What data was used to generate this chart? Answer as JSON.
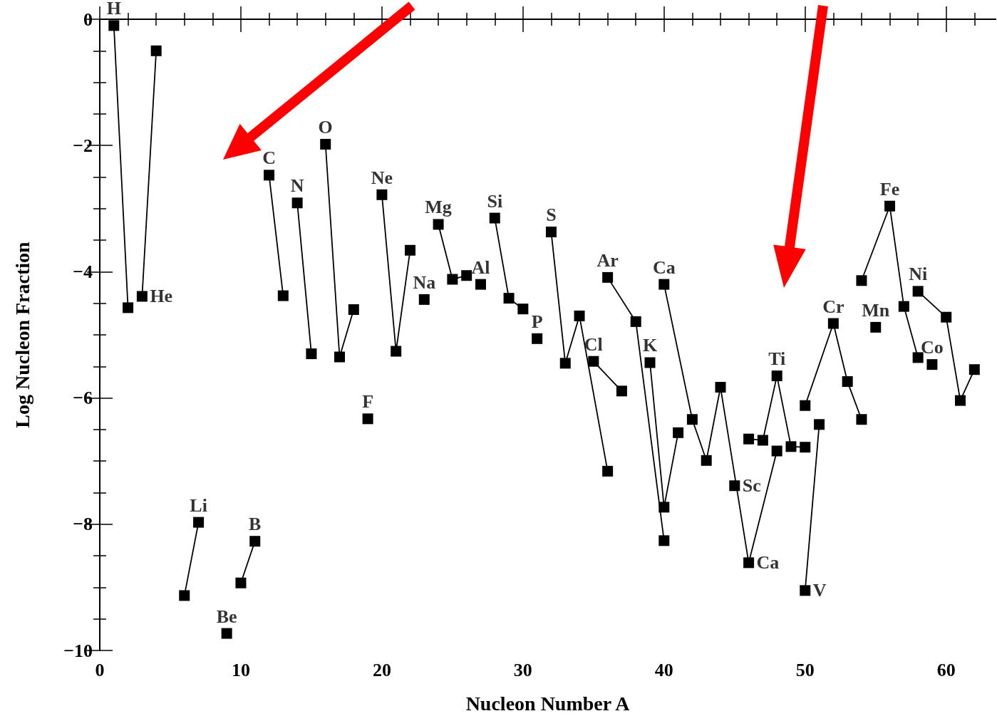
{
  "chart_data": {
    "type": "line",
    "xlabel": "Nucleon Number A",
    "ylabel": "Log Nucleon Fraction",
    "marker": "square",
    "line_style": "solid",
    "xlim": [
      0,
      63.5
    ],
    "ylim": [
      -10,
      0
    ],
    "xticks": [
      0,
      {
        "value": 2,
        "label": null
      },
      {
        "value": 4,
        "label": null
      },
      {
        "value": 6,
        "label": null
      },
      {
        "value": 8,
        "label": null
      },
      10,
      {
        "value": 12,
        "label": null
      },
      {
        "value": 14,
        "label": null
      },
      {
        "value": 16,
        "label": null
      },
      {
        "value": 18,
        "label": null
      },
      20,
      {
        "value": 22,
        "label": null
      },
      {
        "value": 24,
        "label": null
      },
      {
        "value": 26,
        "label": null
      },
      {
        "value": 28,
        "label": null
      },
      30,
      {
        "value": 32,
        "label": null
      },
      {
        "value": 34,
        "label": null
      },
      {
        "value": 36,
        "label": null
      },
      {
        "value": 38,
        "label": null
      },
      40,
      {
        "value": 42,
        "label": null
      },
      {
        "value": 44,
        "label": null
      },
      {
        "value": 46,
        "label": null
      },
      {
        "value": 48,
        "label": null
      },
      50,
      {
        "value": 52,
        "label": null
      },
      {
        "value": 54,
        "label": null
      },
      {
        "value": 56,
        "label": null
      },
      {
        "value": 58,
        "label": null
      },
      60,
      {
        "value": 62,
        "label": null
      }
    ],
    "yticks": [
      -10,
      {
        "value": -9.5,
        "label": null
      },
      {
        "value": -9,
        "label": null
      },
      {
        "value": -8.5,
        "label": null
      },
      -8,
      {
        "value": -7.5,
        "label": null
      },
      {
        "value": -7,
        "label": null
      },
      {
        "value": -6.5,
        "label": null
      },
      -6,
      {
        "value": -5.5,
        "label": null
      },
      {
        "value": -5,
        "label": null
      },
      {
        "value": -4.5,
        "label": null
      },
      -4,
      {
        "value": -3.5,
        "label": null
      },
      {
        "value": -3,
        "label": null
      },
      {
        "value": -2.5,
        "label": null
      },
      -2,
      {
        "value": -1.5,
        "label": null
      },
      {
        "value": -1,
        "label": null
      },
      {
        "value": -0.5,
        "label": null
      },
      0
    ],
    "series": [
      {
        "color": "#000000",
        "x": [
          1,
          2
        ],
        "values": [
          -0.1,
          -4.57
        ]
      },
      {
        "color": "#000000",
        "x": [
          3,
          4
        ],
        "values": [
          -4.39,
          -0.5
        ]
      },
      {
        "color": "#000000",
        "x": [
          6,
          7
        ],
        "values": [
          -9.13,
          -7.97
        ]
      },
      {
        "color": "#000000",
        "x": [
          9
        ],
        "values": [
          -9.73
        ]
      },
      {
        "color": "#000000",
        "x": [
          10,
          11
        ],
        "values": [
          -8.93,
          -8.27
        ]
      },
      {
        "color": "#000000",
        "x": [
          12,
          13
        ],
        "values": [
          -2.47,
          -4.38
        ]
      },
      {
        "color": "#000000",
        "x": [
          14,
          15
        ],
        "values": [
          -2.91,
          -5.3
        ]
      },
      {
        "color": "#000000",
        "x": [
          16,
          17,
          18
        ],
        "values": [
          -1.98,
          -5.35,
          -4.6
        ]
      },
      {
        "color": "#000000",
        "x": [
          19
        ],
        "values": [
          -6.33
        ]
      },
      {
        "color": "#000000",
        "x": [
          20,
          21,
          22
        ],
        "values": [
          -2.78,
          -5.26,
          -3.66
        ]
      },
      {
        "color": "#000000",
        "x": [
          23
        ],
        "values": [
          -4.44
        ]
      },
      {
        "color": "#000000",
        "x": [
          24,
          25,
          26
        ],
        "values": [
          -3.25,
          -4.12,
          -4.06
        ]
      },
      {
        "color": "#000000",
        "x": [
          27
        ],
        "values": [
          -4.2
        ]
      },
      {
        "color": "#000000",
        "x": [
          28,
          29,
          30
        ],
        "values": [
          -3.15,
          -4.42,
          -4.59
        ]
      },
      {
        "color": "#000000",
        "x": [
          31
        ],
        "values": [
          -5.06
        ]
      },
      {
        "color": "#000000",
        "x": [
          32,
          33,
          34,
          36
        ],
        "values": [
          -3.37,
          -5.45,
          -4.7,
          -7.16
        ]
      },
      {
        "color": "#000000",
        "x": [
          35,
          37
        ],
        "values": [
          -5.42,
          -5.89
        ]
      },
      {
        "color": "#000000",
        "x": [
          36,
          38,
          40
        ],
        "values": [
          -4.09,
          -4.79,
          -8.26
        ]
      },
      {
        "color": "#000000",
        "x": [
          39,
          40,
          41
        ],
        "values": [
          -5.44,
          -7.73,
          -6.55
        ]
      },
      {
        "color": "#000000",
        "x": [
          40,
          42,
          43,
          44,
          46,
          48
        ],
        "values": [
          -4.2,
          -6.34,
          -6.99,
          -5.83,
          -8.61,
          -6.84
        ]
      },
      {
        "color": "#000000",
        "x": [
          45
        ],
        "values": [
          -7.39
        ]
      },
      {
        "color": "#000000",
        "x": [
          46,
          47,
          48,
          49,
          50
        ],
        "values": [
          -6.65,
          -6.67,
          -5.65,
          -6.77,
          -6.78
        ]
      },
      {
        "color": "#000000",
        "x": [
          50,
          51
        ],
        "values": [
          -9.05,
          -6.42
        ]
      },
      {
        "color": "#000000",
        "x": [
          50,
          52,
          53,
          54
        ],
        "values": [
          -6.12,
          -4.82,
          -5.74,
          -6.34
        ]
      },
      {
        "color": "#000000",
        "x": [
          55
        ],
        "values": [
          -4.88
        ]
      },
      {
        "color": "#000000",
        "x": [
          54,
          56,
          57,
          58
        ],
        "values": [
          -4.14,
          -2.96,
          -4.55,
          -5.36
        ]
      },
      {
        "color": "#000000",
        "x": [
          59
        ],
        "values": [
          -5.47
        ]
      },
      {
        "color": "#000000",
        "x": [
          58,
          60,
          61,
          62
        ],
        "values": [
          -4.31,
          -4.72,
          -6.04,
          -5.55
        ]
      }
    ],
    "annotations": [
      {
        "text": "H",
        "x": 1,
        "y": -0.1
      },
      {
        "text": "He",
        "x": 3,
        "y": -4.39
      },
      {
        "text": "Li",
        "x": 7,
        "y": -7.97
      },
      {
        "text": "Be",
        "x": 9,
        "y": -9.73
      },
      {
        "text": "B",
        "x": 11,
        "y": -8.27
      },
      {
        "text": "C",
        "x": 12,
        "y": -2.47
      },
      {
        "text": "N",
        "x": 14,
        "y": -2.91
      },
      {
        "text": "O",
        "x": 16,
        "y": -1.98
      },
      {
        "text": "F",
        "x": 19,
        "y": -6.33
      },
      {
        "text": "Ne",
        "x": 20,
        "y": -2.78
      },
      {
        "text": "Na",
        "x": 23,
        "y": -4.44
      },
      {
        "text": "Mg",
        "x": 24,
        "y": -3.25
      },
      {
        "text": "Al",
        "x": 27,
        "y": -4.2
      },
      {
        "text": "Si",
        "x": 28,
        "y": -3.15
      },
      {
        "text": "P",
        "x": 31,
        "y": -5.06
      },
      {
        "text": "S",
        "x": 32,
        "y": -3.37
      },
      {
        "text": "Ar",
        "x": 36,
        "y": -4.09
      },
      {
        "text": "Cl",
        "x": 35,
        "y": -5.42
      },
      {
        "text": "Ca",
        "x": 40,
        "y": -4.2
      },
      {
        "text": "K",
        "x": 39,
        "y": -5.44
      },
      {
        "text": "Sc",
        "x": 45,
        "y": -7.39
      },
      {
        "text": "Ca",
        "x": 46,
        "y": -8.61
      },
      {
        "text": "Ti",
        "x": 48,
        "y": -5.65
      },
      {
        "text": "V",
        "x": 50,
        "y": -9.05
      },
      {
        "text": "Cr",
        "x": 52,
        "y": -4.82
      },
      {
        "text": "Mn",
        "x": 55,
        "y": -4.88
      },
      {
        "text": "Fe",
        "x": 56,
        "y": -2.96
      },
      {
        "text": "Ni",
        "x": 58,
        "y": -4.31
      },
      {
        "text": "Co",
        "x": 59,
        "y": -5.47
      }
    ]
  }
}
